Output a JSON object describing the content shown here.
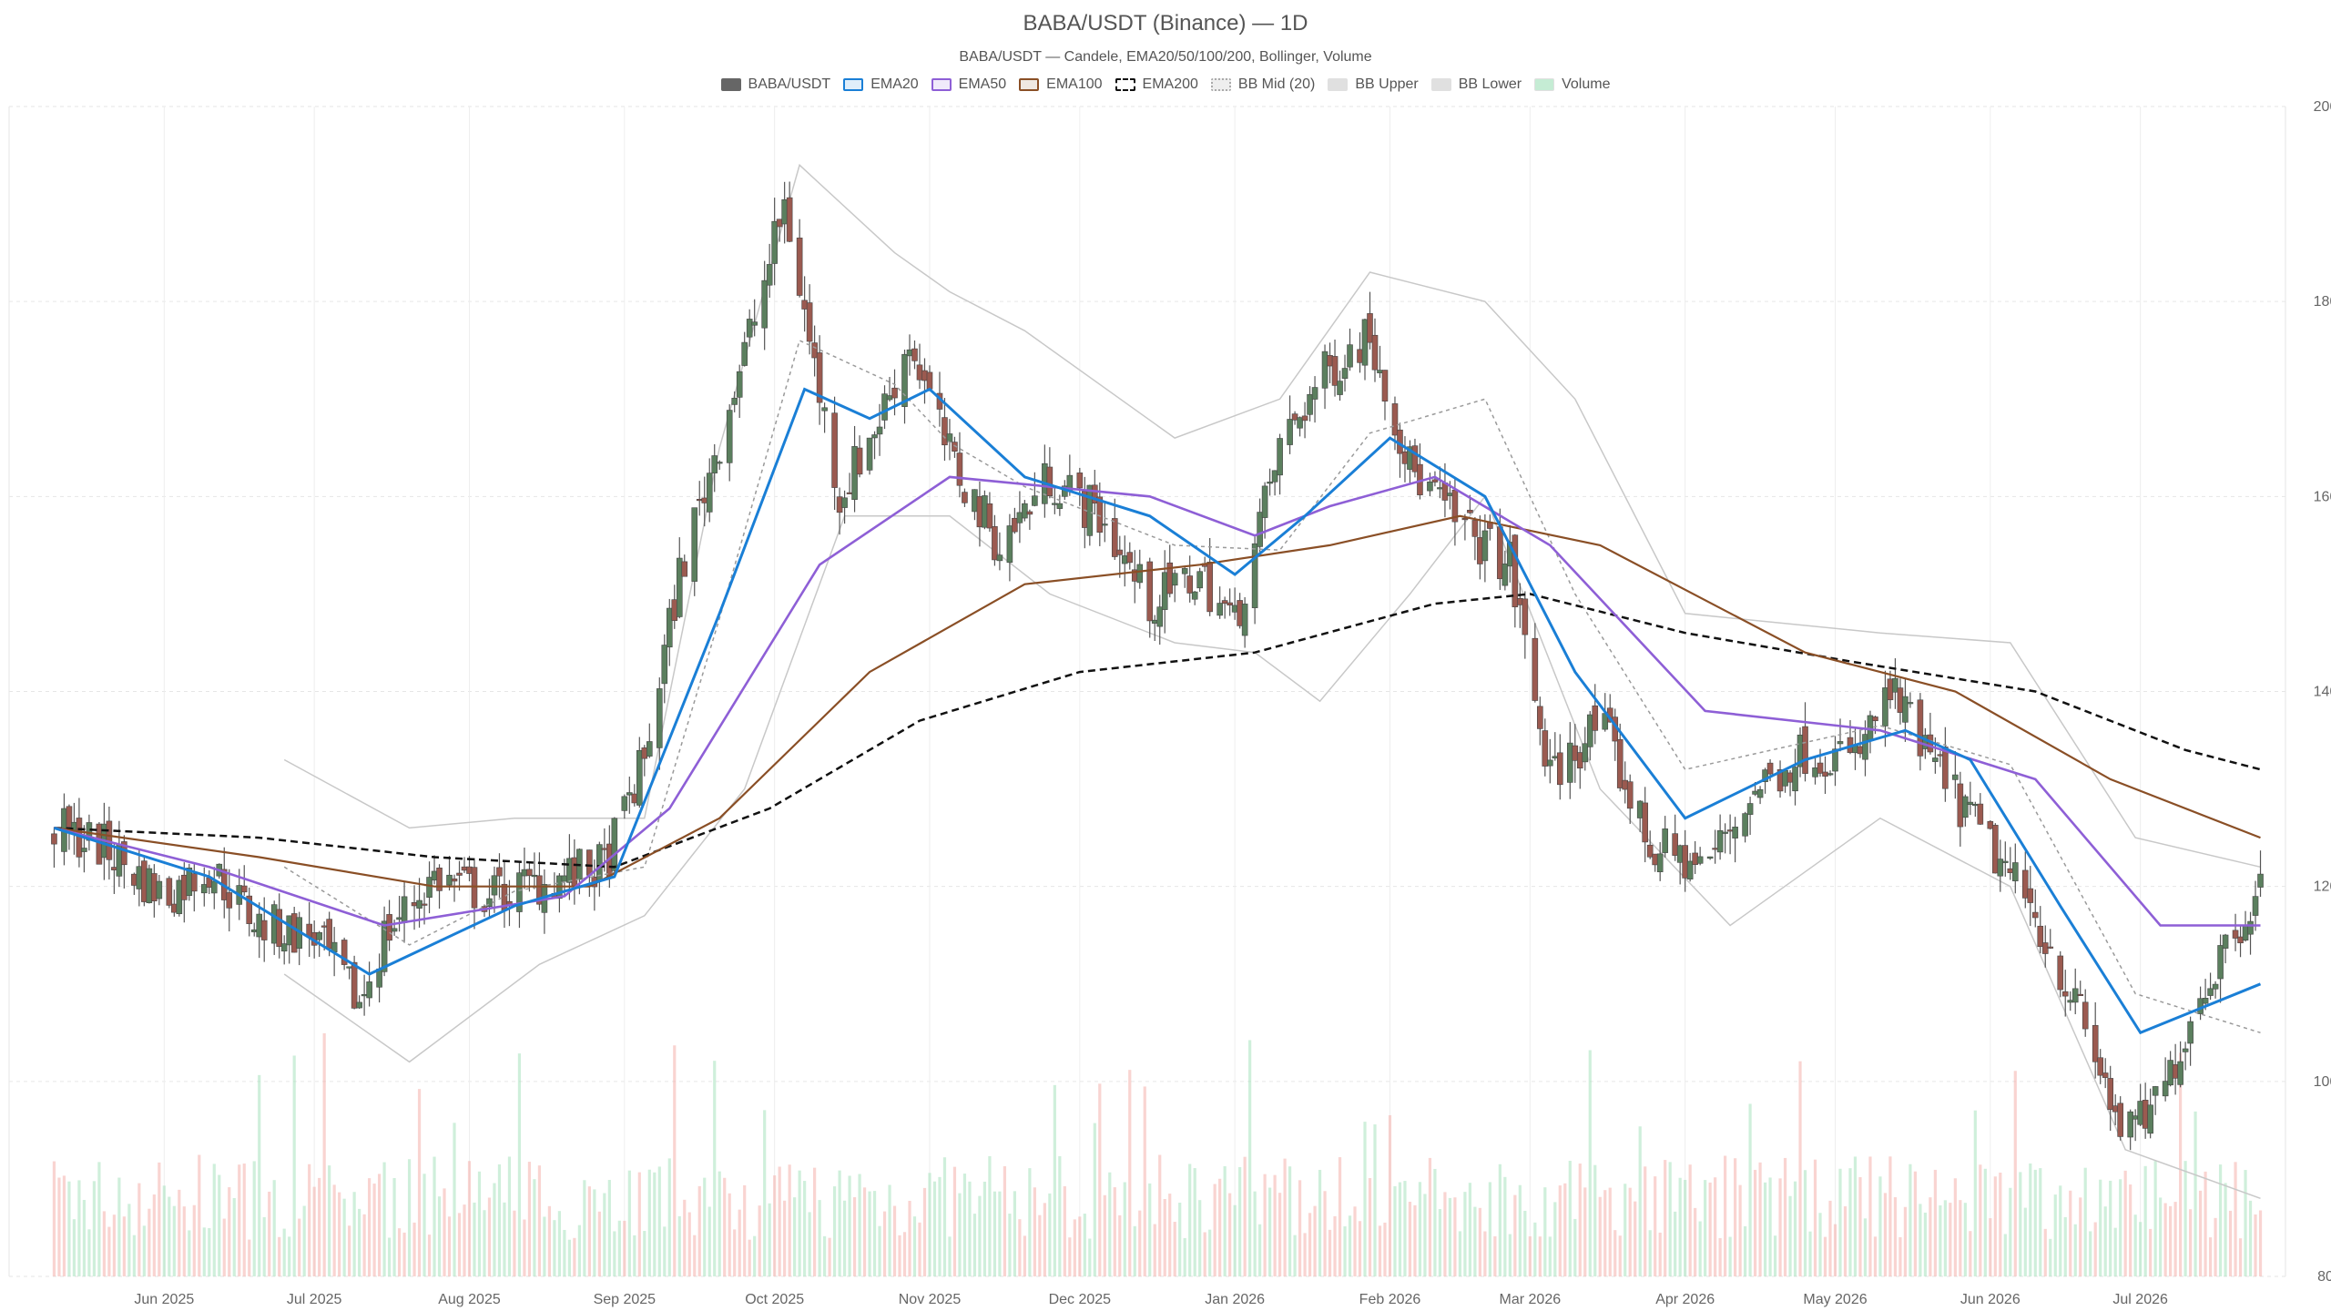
{
  "chart_data": {
    "type": "candlestick",
    "title": "BABA/USDT (Binance) — 1D",
    "subtitle": "BABA/USDT — Candele, EMA20/50/100/200, Bollinger, Volume",
    "legend": [
      {
        "label": "BABA/USDT",
        "color": "#666666",
        "style": "solid-fill"
      },
      {
        "label": "EMA20",
        "color": "#1a7fd6",
        "style": "line"
      },
      {
        "label": "EMA50",
        "color": "#8e5fd6",
        "style": "line"
      },
      {
        "label": "EMA100",
        "color": "#8a4f26",
        "style": "line"
      },
      {
        "label": "EMA200",
        "color": "#111111",
        "style": "dashed"
      },
      {
        "label": "BB Mid (20)",
        "color": "#aaaaaa",
        "style": "dotted"
      },
      {
        "label": "BB Upper",
        "color": "#cccccc",
        "style": "fill"
      },
      {
        "label": "BB Lower",
        "color": "#cccccc",
        "style": "fill"
      },
      {
        "label": "Volume",
        "color": "#9fe0b8",
        "style": "fill"
      }
    ],
    "ylim": [
      80,
      200
    ],
    "y_ticks": [
      80,
      100,
      120,
      140,
      160,
      180,
      200
    ],
    "x_ticks": [
      "Jun 2025",
      "Jul 2025",
      "Aug 2025",
      "Sep 2025",
      "Oct 2025",
      "Nov 2025",
      "Dec 2025",
      "Jan 2026",
      "Feb 2026",
      "Mar 2026",
      "Apr 2026",
      "May 2026",
      "Jun 2026",
      "Jul 2026"
    ],
    "price_path": [
      {
        "date": "2025-05-10",
        "close": 126
      },
      {
        "date": "2025-05-20",
        "close": 124
      },
      {
        "date": "2025-06-01",
        "close": 119
      },
      {
        "date": "2025-06-10",
        "close": 122
      },
      {
        "date": "2025-06-20",
        "close": 116
      },
      {
        "date": "2025-07-01",
        "close": 115
      },
      {
        "date": "2025-07-10",
        "close": 108
      },
      {
        "date": "2025-07-15",
        "close": 115
      },
      {
        "date": "2025-07-25",
        "close": 121
      },
      {
        "date": "2025-08-05",
        "close": 119
      },
      {
        "date": "2025-08-20",
        "close": 121
      },
      {
        "date": "2025-08-28",
        "close": 122
      },
      {
        "date": "2025-09-05",
        "close": 133
      },
      {
        "date": "2025-09-12",
        "close": 152
      },
      {
        "date": "2025-09-20",
        "close": 166
      },
      {
        "date": "2025-09-28",
        "close": 180
      },
      {
        "date": "2025-10-03",
        "close": 190
      },
      {
        "date": "2025-10-08",
        "close": 176
      },
      {
        "date": "2025-10-14",
        "close": 160
      },
      {
        "date": "2025-10-22",
        "close": 168
      },
      {
        "date": "2025-10-28",
        "close": 176
      },
      {
        "date": "2025-11-05",
        "close": 164
      },
      {
        "date": "2025-11-15",
        "close": 155
      },
      {
        "date": "2025-11-25",
        "close": 162
      },
      {
        "date": "2025-12-05",
        "close": 158
      },
      {
        "date": "2025-12-15",
        "close": 149
      },
      {
        "date": "2025-12-25",
        "close": 152
      },
      {
        "date": "2026-01-01",
        "close": 147
      },
      {
        "date": "2026-01-10",
        "close": 165
      },
      {
        "date": "2026-01-18",
        "close": 172
      },
      {
        "date": "2026-01-28",
        "close": 177
      },
      {
        "date": "2026-02-05",
        "close": 163
      },
      {
        "date": "2026-02-15",
        "close": 157
      },
      {
        "date": "2026-02-25",
        "close": 153
      },
      {
        "date": "2026-03-05",
        "close": 131
      },
      {
        "date": "2026-03-15",
        "close": 137
      },
      {
        "date": "2026-03-25",
        "close": 124
      },
      {
        "date": "2026-04-05",
        "close": 122
      },
      {
        "date": "2026-04-15",
        "close": 130
      },
      {
        "date": "2026-04-25",
        "close": 134
      },
      {
        "date": "2026-05-05",
        "close": 133
      },
      {
        "date": "2026-05-12",
        "close": 140
      },
      {
        "date": "2026-05-20",
        "close": 133
      },
      {
        "date": "2026-06-01",
        "close": 124
      },
      {
        "date": "2026-06-10",
        "close": 117
      },
      {
        "date": "2026-06-18",
        "close": 108
      },
      {
        "date": "2026-06-28",
        "close": 94
      },
      {
        "date": "2026-07-05",
        "close": 98
      },
      {
        "date": "2026-07-12",
        "close": 108
      },
      {
        "date": "2026-07-18",
        "close": 114
      },
      {
        "date": "2026-07-25",
        "close": 120
      }
    ],
    "ema20_path": [
      {
        "date": "2025-05-10",
        "value": 126
      },
      {
        "date": "2025-06-10",
        "value": 121
      },
      {
        "date": "2025-07-12",
        "value": 111
      },
      {
        "date": "2025-08-10",
        "value": 118
      },
      {
        "date": "2025-08-30",
        "value": 121
      },
      {
        "date": "2025-09-20",
        "value": 148
      },
      {
        "date": "2025-10-07",
        "value": 171
      },
      {
        "date": "2025-10-20",
        "value": 168
      },
      {
        "date": "2025-11-01",
        "value": 171
      },
      {
        "date": "2025-11-20",
        "value": 162
      },
      {
        "date": "2025-12-15",
        "value": 158
      },
      {
        "date": "2026-01-01",
        "value": 152
      },
      {
        "date": "2026-01-15",
        "value": 158
      },
      {
        "date": "2026-02-01",
        "value": 166
      },
      {
        "date": "2026-02-20",
        "value": 160
      },
      {
        "date": "2026-03-10",
        "value": 142
      },
      {
        "date": "2026-04-01",
        "value": 127
      },
      {
        "date": "2026-04-25",
        "value": 133
      },
      {
        "date": "2026-05-15",
        "value": 136
      },
      {
        "date": "2026-05-28",
        "value": 133
      },
      {
        "date": "2026-06-15",
        "value": 118
      },
      {
        "date": "2026-07-01",
        "value": 105
      },
      {
        "date": "2026-07-25",
        "value": 110
      }
    ],
    "ema50_path": [
      {
        "date": "2025-05-10",
        "value": 126
      },
      {
        "date": "2025-06-10",
        "value": 122
      },
      {
        "date": "2025-07-15",
        "value": 116
      },
      {
        "date": "2025-08-20",
        "value": 119
      },
      {
        "date": "2025-09-10",
        "value": 128
      },
      {
        "date": "2025-10-10",
        "value": 153
      },
      {
        "date": "2025-11-05",
        "value": 162
      },
      {
        "date": "2025-12-15",
        "value": 160
      },
      {
        "date": "2026-01-05",
        "value": 156
      },
      {
        "date": "2026-01-20",
        "value": 159
      },
      {
        "date": "2026-02-10",
        "value": 162
      },
      {
        "date": "2026-03-05",
        "value": 155
      },
      {
        "date": "2026-04-05",
        "value": 138
      },
      {
        "date": "2026-05-10",
        "value": 136
      },
      {
        "date": "2026-06-10",
        "value": 131
      },
      {
        "date": "2026-07-05",
        "value": 116
      },
      {
        "date": "2026-07-25",
        "value": 116
      }
    ],
    "ema100_path": [
      {
        "date": "2025-05-10",
        "value": 126
      },
      {
        "date": "2025-06-20",
        "value": 123
      },
      {
        "date": "2025-07-25",
        "value": 120
      },
      {
        "date": "2025-08-25",
        "value": 120
      },
      {
        "date": "2025-09-20",
        "value": 127
      },
      {
        "date": "2025-10-20",
        "value": 142
      },
      {
        "date": "2025-11-20",
        "value": 151
      },
      {
        "date": "2025-12-25",
        "value": 153
      },
      {
        "date": "2026-01-20",
        "value": 155
      },
      {
        "date": "2026-02-15",
        "value": 158
      },
      {
        "date": "2026-03-15",
        "value": 155
      },
      {
        "date": "2026-04-25",
        "value": 144
      },
      {
        "date": "2026-05-25",
        "value": 140
      },
      {
        "date": "2026-06-25",
        "value": 131
      },
      {
        "date": "2026-07-25",
        "value": 125
      }
    ],
    "ema200_path": [
      {
        "date": "2025-05-10",
        "value": 126
      },
      {
        "date": "2025-06-20",
        "value": 125
      },
      {
        "date": "2025-07-25",
        "value": 123
      },
      {
        "date": "2025-08-30",
        "value": 122
      },
      {
        "date": "2025-09-30",
        "value": 128
      },
      {
        "date": "2025-10-30",
        "value": 137
      },
      {
        "date": "2025-12-01",
        "value": 142
      },
      {
        "date": "2026-01-05",
        "value": 144
      },
      {
        "date": "2026-02-10",
        "value": 149
      },
      {
        "date": "2026-03-01",
        "value": 150
      },
      {
        "date": "2026-04-01",
        "value": 146
      },
      {
        "date": "2026-05-05",
        "value": 143
      },
      {
        "date": "2026-06-10",
        "value": 140
      },
      {
        "date": "2026-07-10",
        "value": 134
      },
      {
        "date": "2026-07-25",
        "value": 132
      }
    ],
    "bb_upper_path": [
      {
        "date": "2025-06-25",
        "value": 133
      },
      {
        "date": "2025-07-20",
        "value": 126
      },
      {
        "date": "2025-08-10",
        "value": 127
      },
      {
        "date": "2025-09-05",
        "value": 127
      },
      {
        "date": "2025-09-20",
        "value": 165
      },
      {
        "date": "2025-10-06",
        "value": 194
      },
      {
        "date": "2025-10-25",
        "value": 185
      },
      {
        "date": "2025-11-05",
        "value": 181
      },
      {
        "date": "2025-11-20",
        "value": 177
      },
      {
        "date": "2025-12-20",
        "value": 166
      },
      {
        "date": "2026-01-10",
        "value": 170
      },
      {
        "date": "2026-01-28",
        "value": 183
      },
      {
        "date": "2026-02-20",
        "value": 180
      },
      {
        "date": "2026-03-10",
        "value": 170
      },
      {
        "date": "2026-04-01",
        "value": 148
      },
      {
        "date": "2026-05-10",
        "value": 146
      },
      {
        "date": "2026-06-05",
        "value": 145
      },
      {
        "date": "2026-06-30",
        "value": 125
      },
      {
        "date": "2026-07-25",
        "value": 122
      }
    ],
    "bb_lower_path": [
      {
        "date": "2025-06-25",
        "value": 111
      },
      {
        "date": "2025-07-20",
        "value": 102
      },
      {
        "date": "2025-08-15",
        "value": 112
      },
      {
        "date": "2025-09-05",
        "value": 117
      },
      {
        "date": "2025-09-25",
        "value": 130
      },
      {
        "date": "2025-10-15",
        "value": 158
      },
      {
        "date": "2025-11-05",
        "value": 158
      },
      {
        "date": "2025-11-25",
        "value": 150
      },
      {
        "date": "2025-12-20",
        "value": 145
      },
      {
        "date": "2026-01-05",
        "value": 144
      },
      {
        "date": "2026-01-18",
        "value": 139
      },
      {
        "date": "2026-02-05",
        "value": 150
      },
      {
        "date": "2026-02-20",
        "value": 160
      },
      {
        "date": "2026-03-15",
        "value": 130
      },
      {
        "date": "2026-04-10",
        "value": 116
      },
      {
        "date": "2026-05-10",
        "value": 127
      },
      {
        "date": "2026-06-05",
        "value": 120
      },
      {
        "date": "2026-06-28",
        "value": 93
      },
      {
        "date": "2026-07-25",
        "value": 88
      }
    ],
    "volume_axis_max": 1
  }
}
